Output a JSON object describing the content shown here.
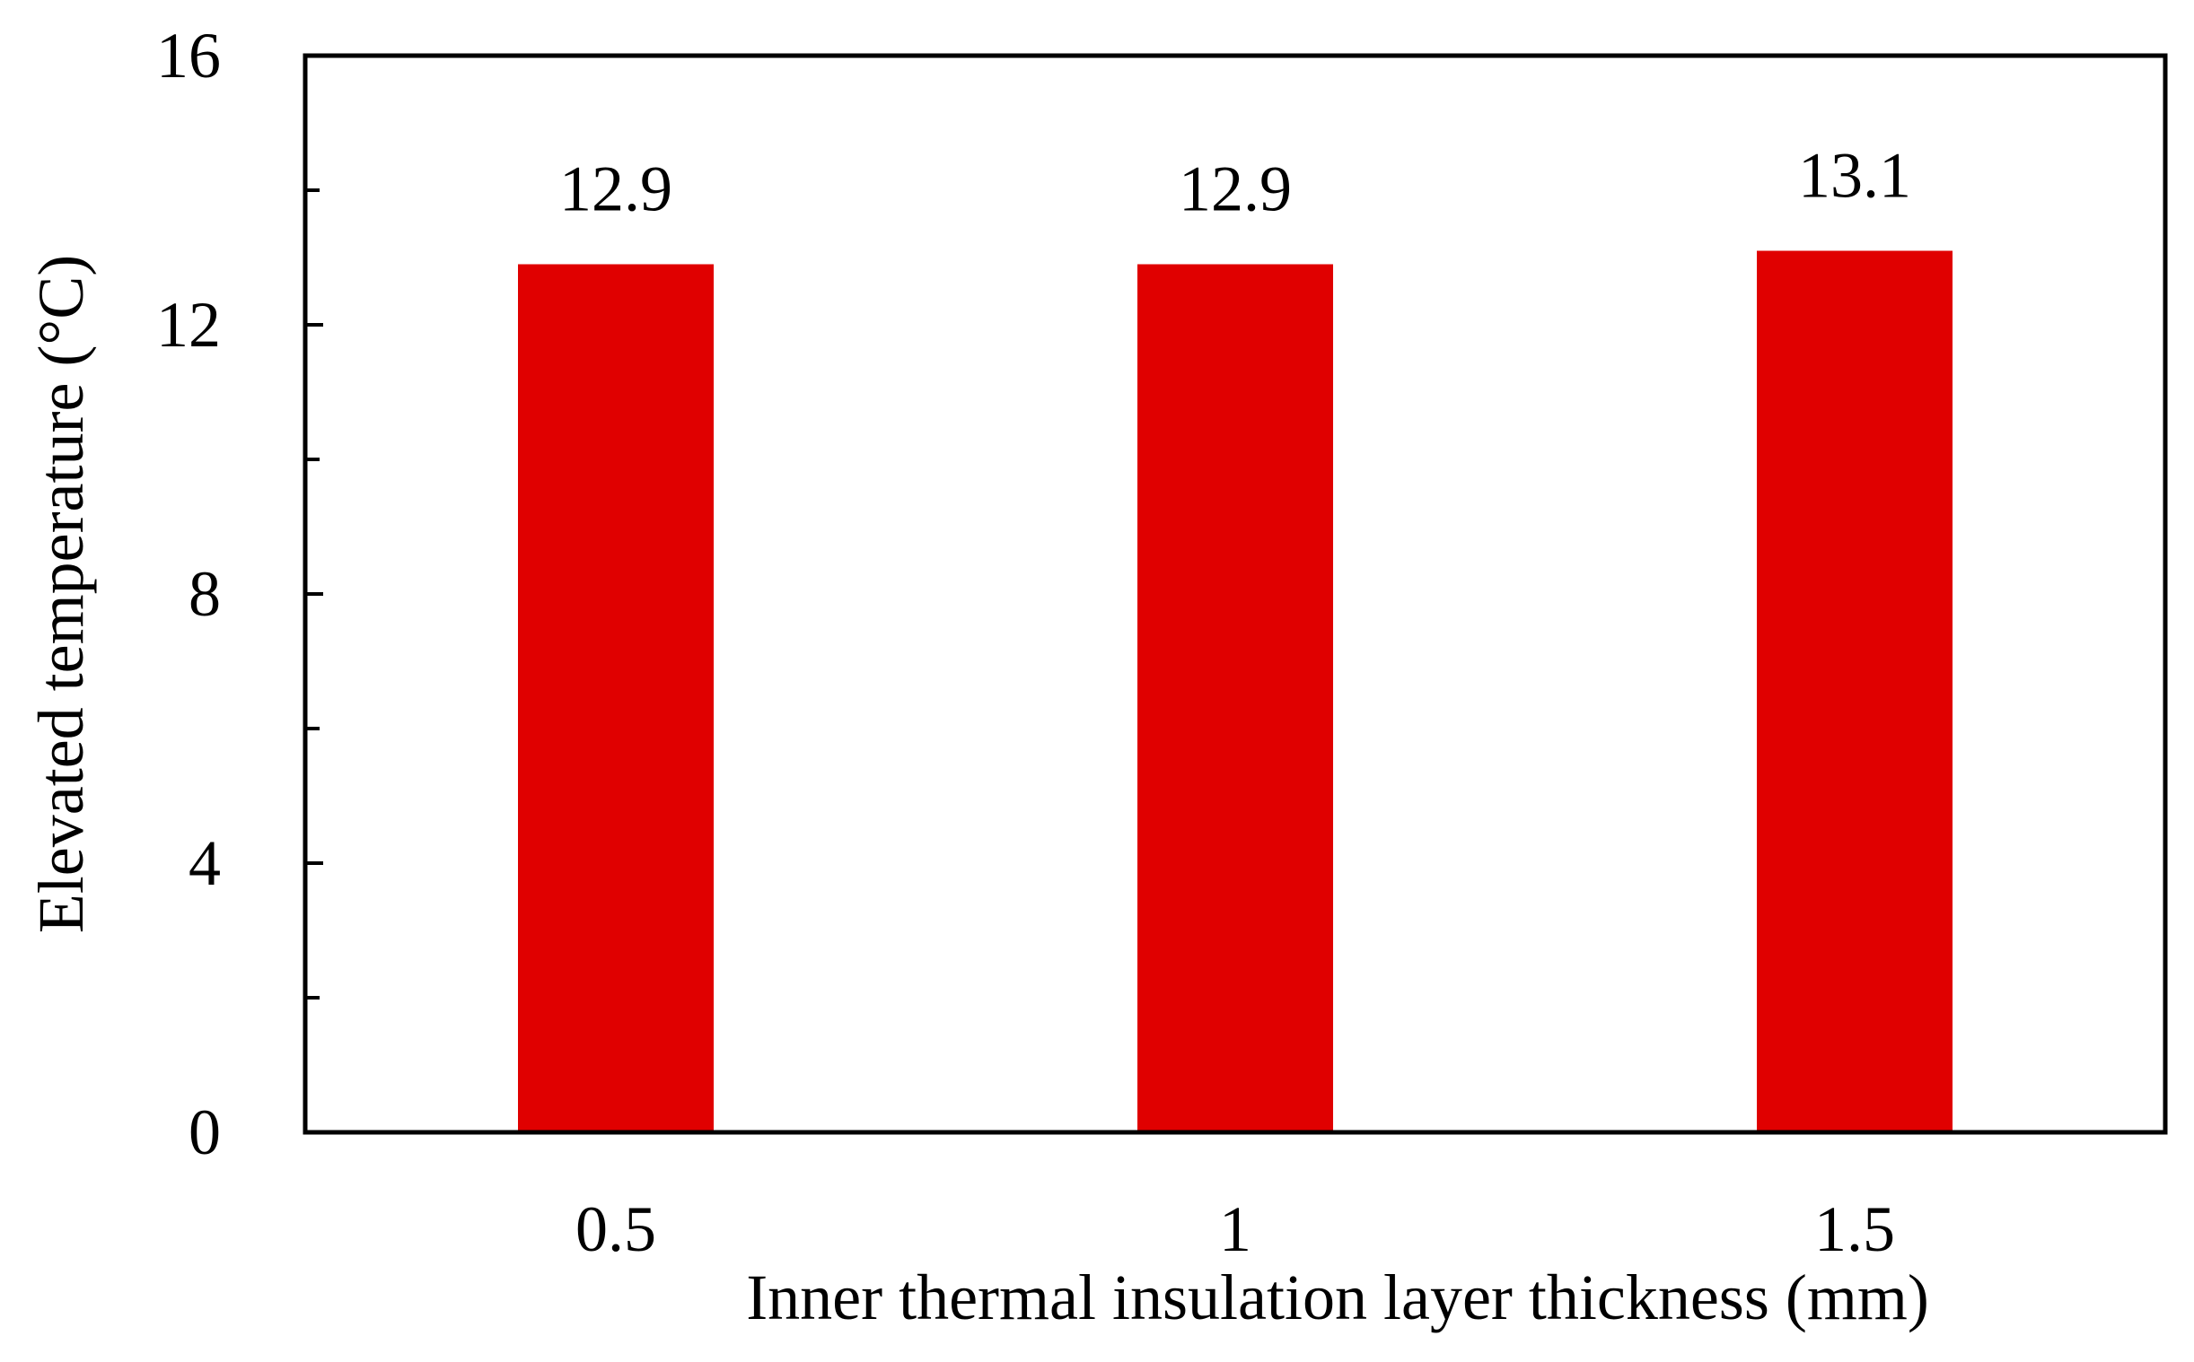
{
  "chart_data": {
    "type": "bar",
    "title": "",
    "categories": [
      "0.5",
      "1",
      "1.5"
    ],
    "values": [
      12.9,
      12.9,
      13.1
    ],
    "data_labels": [
      "12.9",
      "12.9",
      "13.1"
    ],
    "xlabel": "Inner thermal insulation layer thickness (mm)",
    "ylabel": "Elevated temperature (°C)",
    "ylim": [
      0,
      16
    ],
    "y_major_ticks": [
      0,
      4,
      8,
      12,
      16
    ],
    "y_minor_ticks": [
      2,
      6,
      10,
      14
    ],
    "y_tick_labels": [
      "0",
      "4",
      "8",
      "12",
      "16"
    ],
    "grid": false,
    "legend": "none",
    "bar_color": "#e00000",
    "frame_color": "#000000"
  }
}
